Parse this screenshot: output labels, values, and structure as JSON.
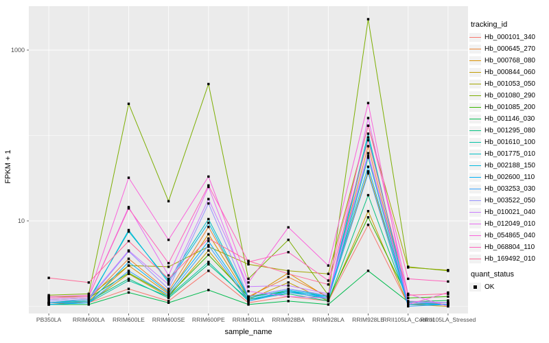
{
  "figure": {
    "panel_background": "#EBEBEB",
    "gridline_color": "#FFFFFF",
    "tick_color": "#333333",
    "tick_label_color": "#4D4D4D",
    "point_color": "#000000"
  },
  "legend": {
    "tracking_title": "tracking_id",
    "quant_title": "quant_status",
    "ok_label": "OK"
  },
  "chart_data": {
    "type": "line",
    "title": "",
    "xlabel": "sample_name",
    "ylabel": "FPKM + 1",
    "y_scale": "log10",
    "y_tick_labels": [
      "10",
      "1000"
    ],
    "y_tick_values": [
      10,
      1000
    ],
    "y_minor_gridline_values": [
      1,
      100
    ],
    "legend_position": "right",
    "point_shape": "filled-square",
    "quant_status": "OK",
    "categories": [
      "PB350LA",
      "RRIM600LA",
      "RRIM600LE",
      "RRIM600SE",
      "RRIM600PE",
      "RRIM901LA",
      "RRIM928BA",
      "RRIM928LA",
      "RRIM928LE",
      "RRII105LA_Control",
      "RRII105LA_Stressed"
    ],
    "series": [
      {
        "name": "Hb_000101_340",
        "color": "#F8766D",
        "values": [
          1.1,
          1.1,
          1.6,
          1.15,
          2.6,
          1.1,
          1.3,
          1.15,
          9,
          1.05,
          1.1
        ]
      },
      {
        "name": "Hb_000645_270",
        "color": "#EA8331",
        "values": [
          1.1,
          1.2,
          3.6,
          1.5,
          8.5,
          1.3,
          2.2,
          1.3,
          75,
          1.1,
          1.05
        ]
      },
      {
        "name": "Hb_000768_080",
        "color": "#D89000",
        "values": [
          1.05,
          1.15,
          3.0,
          1.4,
          7.0,
          1.25,
          2.45,
          1.25,
          38,
          1.1,
          1.05
        ]
      },
      {
        "name": "Hb_000844_060",
        "color": "#C09B00",
        "values": [
          1.1,
          1.1,
          2.4,
          1.3,
          4.5,
          1.2,
          1.9,
          1.15,
          13,
          1.05,
          1.0
        ]
      },
      {
        "name": "Hb_001053_050",
        "color": "#A3A500",
        "values": [
          1.3,
          1.3,
          3.0,
          2.9,
          5.0,
          3.1,
          2.6,
          2.4,
          130,
          2.85,
          2.65
        ]
      },
      {
        "name": "Hb_001080_290",
        "color": "#7CAE00",
        "values": [
          1.35,
          1.4,
          235,
          17,
          400,
          2.1,
          6.0,
          1.35,
          2300,
          2.9,
          2.6
        ]
      },
      {
        "name": "Hb_001085_200",
        "color": "#39B600",
        "values": [
          1.2,
          1.25,
          2.45,
          1.35,
          4.0,
          1.3,
          1.5,
          1.2,
          11,
          1.25,
          1.3
        ]
      },
      {
        "name": "Hb_001146_030",
        "color": "#00BB4E",
        "values": [
          1.05,
          1.05,
          1.45,
          1.1,
          1.55,
          1.05,
          1.15,
          1.05,
          2.6,
          1.13,
          1.17
        ]
      },
      {
        "name": "Hb_001295_080",
        "color": "#00BF7D",
        "values": [
          1.1,
          1.15,
          2.1,
          1.25,
          3.1,
          1.2,
          1.4,
          1.15,
          20,
          1.1,
          1.1
        ]
      },
      {
        "name": "Hb_001610_100",
        "color": "#00C1A3",
        "values": [
          1.05,
          1.1,
          2.0,
          1.3,
          3.3,
          1.15,
          1.5,
          1.2,
          55,
          1.05,
          1.05
        ]
      },
      {
        "name": "Hb_001775_010",
        "color": "#00BFC4",
        "values": [
          1.1,
          1.2,
          7.5,
          2.0,
          10.5,
          1.3,
          1.6,
          1.3,
          105,
          1.1,
          1.1
        ]
      },
      {
        "name": "Hb_002188_150",
        "color": "#00BAE0",
        "values": [
          1.1,
          1.15,
          7.8,
          1.9,
          9.5,
          1.25,
          1.55,
          1.25,
          95,
          1.1,
          1.05
        ]
      },
      {
        "name": "Hb_002600_110",
        "color": "#00B0F6",
        "values": [
          1.05,
          1.1,
          3.3,
          1.45,
          5.8,
          1.2,
          1.5,
          1.3,
          43,
          1.05,
          1.05
        ]
      },
      {
        "name": "Hb_003253_030",
        "color": "#35A2FF",
        "values": [
          1.1,
          1.1,
          2.6,
          1.35,
          5.2,
          1.15,
          1.45,
          1.25,
          36,
          1.0,
          1.05
        ]
      },
      {
        "name": "Hb_003522_050",
        "color": "#9590FF",
        "values": [
          1.15,
          1.2,
          4.4,
          1.6,
          16.0,
          1.3,
          1.6,
          1.35,
          58,
          1.1,
          1.1
        ]
      },
      {
        "name": "Hb_010021_040",
        "color": "#C77CFF",
        "values": [
          1.2,
          1.25,
          4.5,
          1.8,
          18.0,
          1.7,
          1.75,
          1.4,
          62,
          1.15,
          1.1
        ]
      },
      {
        "name": "Hb_012049_010",
        "color": "#E76BF3",
        "values": [
          1.25,
          1.3,
          14.5,
          2.3,
          25.0,
          1.5,
          1.3,
          1.25,
          160,
          1.4,
          1.0
        ]
      },
      {
        "name": "Hb_054865_040",
        "color": "#FA62DB",
        "values": [
          1.3,
          1.35,
          32.0,
          6.0,
          33.0,
          1.9,
          8.4,
          3.0,
          240,
          1.05,
          1.45
        ]
      },
      {
        "name": "Hb_068804_110",
        "color": "#FF62BC",
        "values": [
          1.25,
          1.3,
          14.0,
          3.2,
          26.0,
          3.3,
          4.3,
          2.0,
          130,
          2.1,
          1.95
        ]
      },
      {
        "name": "Hb_169492_010",
        "color": "#FF6A98",
        "values": [
          2.15,
          1.9,
          5.8,
          2.1,
          6.2,
          3.4,
          2.4,
          1.8,
          88,
          1.35,
          1.4
        ]
      }
    ]
  }
}
